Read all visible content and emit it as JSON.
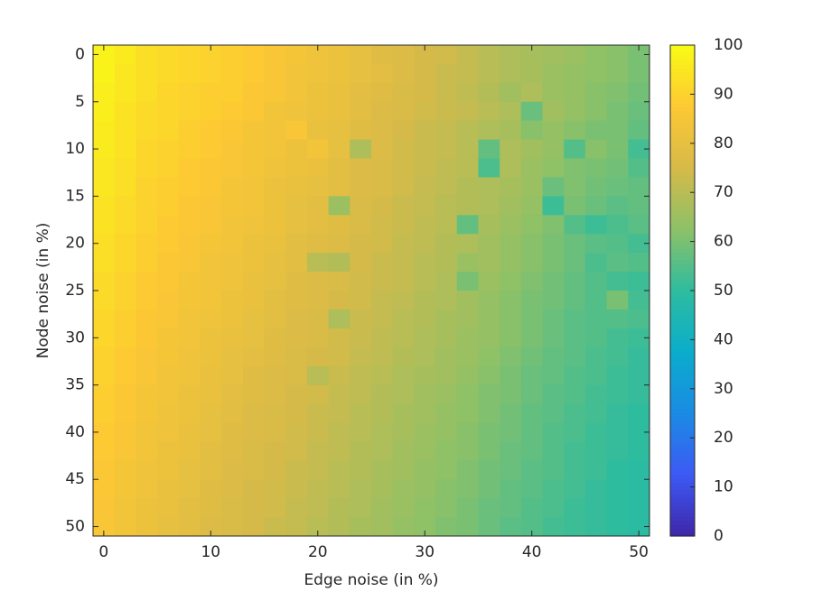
{
  "chart_data": {
    "type": "heatmap",
    "x_label": "Edge noise (in %)",
    "y_label": "Node noise (in %)",
    "x": [
      0,
      2,
      4,
      6,
      8,
      10,
      12,
      14,
      16,
      18,
      20,
      22,
      24,
      26,
      28,
      30,
      32,
      34,
      36,
      38,
      40,
      42,
      44,
      46,
      48,
      50
    ],
    "y": [
      0,
      2,
      4,
      6,
      8,
      10,
      12,
      14,
      16,
      18,
      20,
      22,
      24,
      26,
      28,
      30,
      32,
      34,
      36,
      38,
      40,
      42,
      44,
      46,
      48,
      50
    ],
    "values": [
      [
        98,
        96,
        93,
        92,
        91,
        90,
        89,
        88,
        86,
        85,
        83,
        82,
        80,
        78,
        77,
        75,
        74,
        72,
        70,
        68,
        67,
        66,
        65,
        63,
        62,
        60
      ],
      [
        98,
        95,
        93,
        92,
        91,
        90,
        89,
        88,
        86,
        84,
        83,
        82,
        80,
        79,
        77,
        75,
        73,
        72,
        70,
        68,
        67,
        65,
        64,
        63,
        62,
        60
      ],
      [
        97,
        95,
        93,
        91,
        90,
        89,
        89,
        87,
        86,
        84,
        82,
        81,
        79,
        78,
        76,
        75,
        73,
        71,
        69,
        66,
        68,
        65,
        64,
        62,
        61,
        59
      ],
      [
        97,
        94,
        92,
        91,
        90,
        89,
        88,
        87,
        84,
        83,
        82,
        81,
        79,
        77,
        76,
        74,
        73,
        72,
        70,
        68,
        58,
        66,
        64,
        62,
        60,
        58
      ],
      [
        96,
        94,
        92,
        91,
        89,
        88,
        87,
        85,
        84,
        86,
        81,
        80,
        78,
        77,
        75,
        73,
        72,
        70,
        68,
        67,
        62,
        64,
        62,
        60,
        60,
        57
      ],
      [
        96,
        94,
        91,
        90,
        89,
        88,
        86,
        85,
        84,
        82,
        84,
        80,
        68,
        77,
        74,
        73,
        72,
        70,
        57,
        68,
        66,
        64,
        55,
        62,
        60,
        53
      ],
      [
        95,
        93,
        91,
        90,
        88,
        87,
        86,
        85,
        83,
        82,
        81,
        79,
        77,
        76,
        74,
        73,
        71,
        70,
        54,
        68,
        65,
        63,
        61,
        60,
        59,
        55
      ],
      [
        95,
        93,
        90,
        89,
        88,
        87,
        85,
        84,
        82,
        81,
        80,
        79,
        77,
        76,
        74,
        72,
        71,
        69,
        68,
        67,
        65,
        58,
        61,
        59,
        58,
        57
      ],
      [
        94,
        92,
        90,
        89,
        87,
        86,
        85,
        84,
        82,
        80,
        79,
        65,
        76,
        75,
        73,
        72,
        70,
        69,
        68,
        66,
        64,
        52,
        60,
        58,
        56,
        57
      ],
      [
        94,
        92,
        90,
        88,
        87,
        86,
        84,
        83,
        82,
        80,
        79,
        78,
        76,
        74,
        73,
        71,
        70,
        57,
        67,
        65,
        63,
        61,
        55,
        52,
        54,
        56
      ],
      [
        93,
        91,
        89,
        88,
        86,
        85,
        84,
        82,
        81,
        79,
        78,
        77,
        75,
        74,
        72,
        71,
        69,
        68,
        66,
        64,
        62,
        60,
        58,
        56,
        55,
        53
      ],
      [
        93,
        91,
        89,
        87,
        86,
        84,
        83,
        82,
        80,
        79,
        70,
        69,
        75,
        73,
        72,
        70,
        69,
        65,
        66,
        64,
        62,
        60,
        58,
        54,
        56,
        55
      ],
      [
        92,
        90,
        88,
        87,
        85,
        84,
        83,
        81,
        80,
        78,
        77,
        76,
        74,
        73,
        72,
        70,
        68,
        60,
        65,
        63,
        61,
        59,
        57,
        55,
        53,
        52
      ],
      [
        92,
        90,
        88,
        86,
        85,
        84,
        82,
        81,
        79,
        78,
        77,
        75,
        74,
        72,
        71,
        69,
        68,
        66,
        64,
        62,
        60,
        59,
        57,
        55,
        60,
        53
      ],
      [
        91,
        89,
        87,
        86,
        84,
        83,
        82,
        80,
        79,
        77,
        76,
        68,
        73,
        72,
        70,
        69,
        67,
        66,
        64,
        62,
        60,
        58,
        56,
        55,
        55,
        54
      ],
      [
        91,
        89,
        87,
        85,
        84,
        82,
        81,
        80,
        78,
        77,
        76,
        74,
        73,
        71,
        70,
        68,
        67,
        65,
        64,
        62,
        60,
        58,
        56,
        55,
        53,
        52
      ],
      [
        90,
        88,
        86,
        85,
        83,
        82,
        80,
        79,
        78,
        76,
        75,
        74,
        72,
        71,
        69,
        68,
        66,
        65,
        63,
        61,
        59,
        57,
        56,
        54,
        53,
        51
      ],
      [
        90,
        88,
        86,
        84,
        83,
        81,
        80,
        78,
        77,
        76,
        70,
        73,
        71,
        70,
        68,
        67,
        66,
        64,
        62,
        60,
        58,
        57,
        55,
        54,
        52,
        51
      ],
      [
        89,
        87,
        85,
        84,
        82,
        81,
        79,
        78,
        77,
        75,
        74,
        72,
        71,
        69,
        68,
        66,
        65,
        63,
        61,
        60,
        58,
        56,
        55,
        53,
        52,
        51
      ],
      [
        89,
        87,
        85,
        83,
        82,
        80,
        79,
        77,
        76,
        75,
        73,
        72,
        70,
        69,
        67,
        66,
        64,
        63,
        61,
        59,
        57,
        56,
        54,
        53,
        51,
        50
      ],
      [
        88,
        86,
        84,
        83,
        81,
        80,
        78,
        77,
        76,
        74,
        73,
        71,
        70,
        68,
        67,
        65,
        64,
        62,
        60,
        59,
        57,
        55,
        54,
        52,
        51,
        50
      ],
      [
        88,
        86,
        84,
        82,
        81,
        79,
        78,
        76,
        75,
        74,
        72,
        71,
        69,
        68,
        66,
        65,
        63,
        62,
        60,
        58,
        57,
        55,
        53,
        52,
        51,
        50
      ],
      [
        87,
        85,
        83,
        82,
        80,
        79,
        77,
        76,
        75,
        73,
        72,
        70,
        69,
        67,
        66,
        64,
        63,
        61,
        59,
        58,
        56,
        55,
        53,
        52,
        50,
        49
      ],
      [
        87,
        85,
        83,
        81,
        80,
        78,
        77,
        75,
        74,
        73,
        71,
        70,
        68,
        67,
        65,
        64,
        62,
        61,
        59,
        57,
        56,
        54,
        53,
        51,
        50,
        49
      ],
      [
        86,
        84,
        82,
        81,
        79,
        78,
        76,
        75,
        74,
        72,
        71,
        69,
        68,
        66,
        65,
        63,
        62,
        60,
        58,
        57,
        55,
        54,
        52,
        51,
        50,
        49
      ],
      [
        86,
        84,
        82,
        80,
        79,
        77,
        76,
        75,
        73,
        72,
        70,
        69,
        67,
        66,
        64,
        63,
        61,
        60,
        58,
        56,
        55,
        53,
        52,
        51,
        50,
        49
      ]
    ],
    "xlim": [
      -1,
      51
    ],
    "ylim": [
      -1,
      51
    ],
    "y_reversed": true,
    "xticks": [
      0,
      10,
      20,
      30,
      40,
      50
    ],
    "yticks": [
      0,
      5,
      10,
      15,
      20,
      25,
      30,
      35,
      40,
      45,
      50
    ],
    "clim": [
      0,
      100
    ],
    "cticks": [
      0,
      10,
      20,
      30,
      40,
      50,
      60,
      70,
      80,
      90,
      100
    ],
    "colormap": [
      "#3e26a8",
      "#3d59f5",
      "#1b8be4",
      "#0aaccc",
      "#2ebc9f",
      "#8cc168",
      "#d6ba49",
      "#fdc834",
      "#f9fb15"
    ]
  }
}
